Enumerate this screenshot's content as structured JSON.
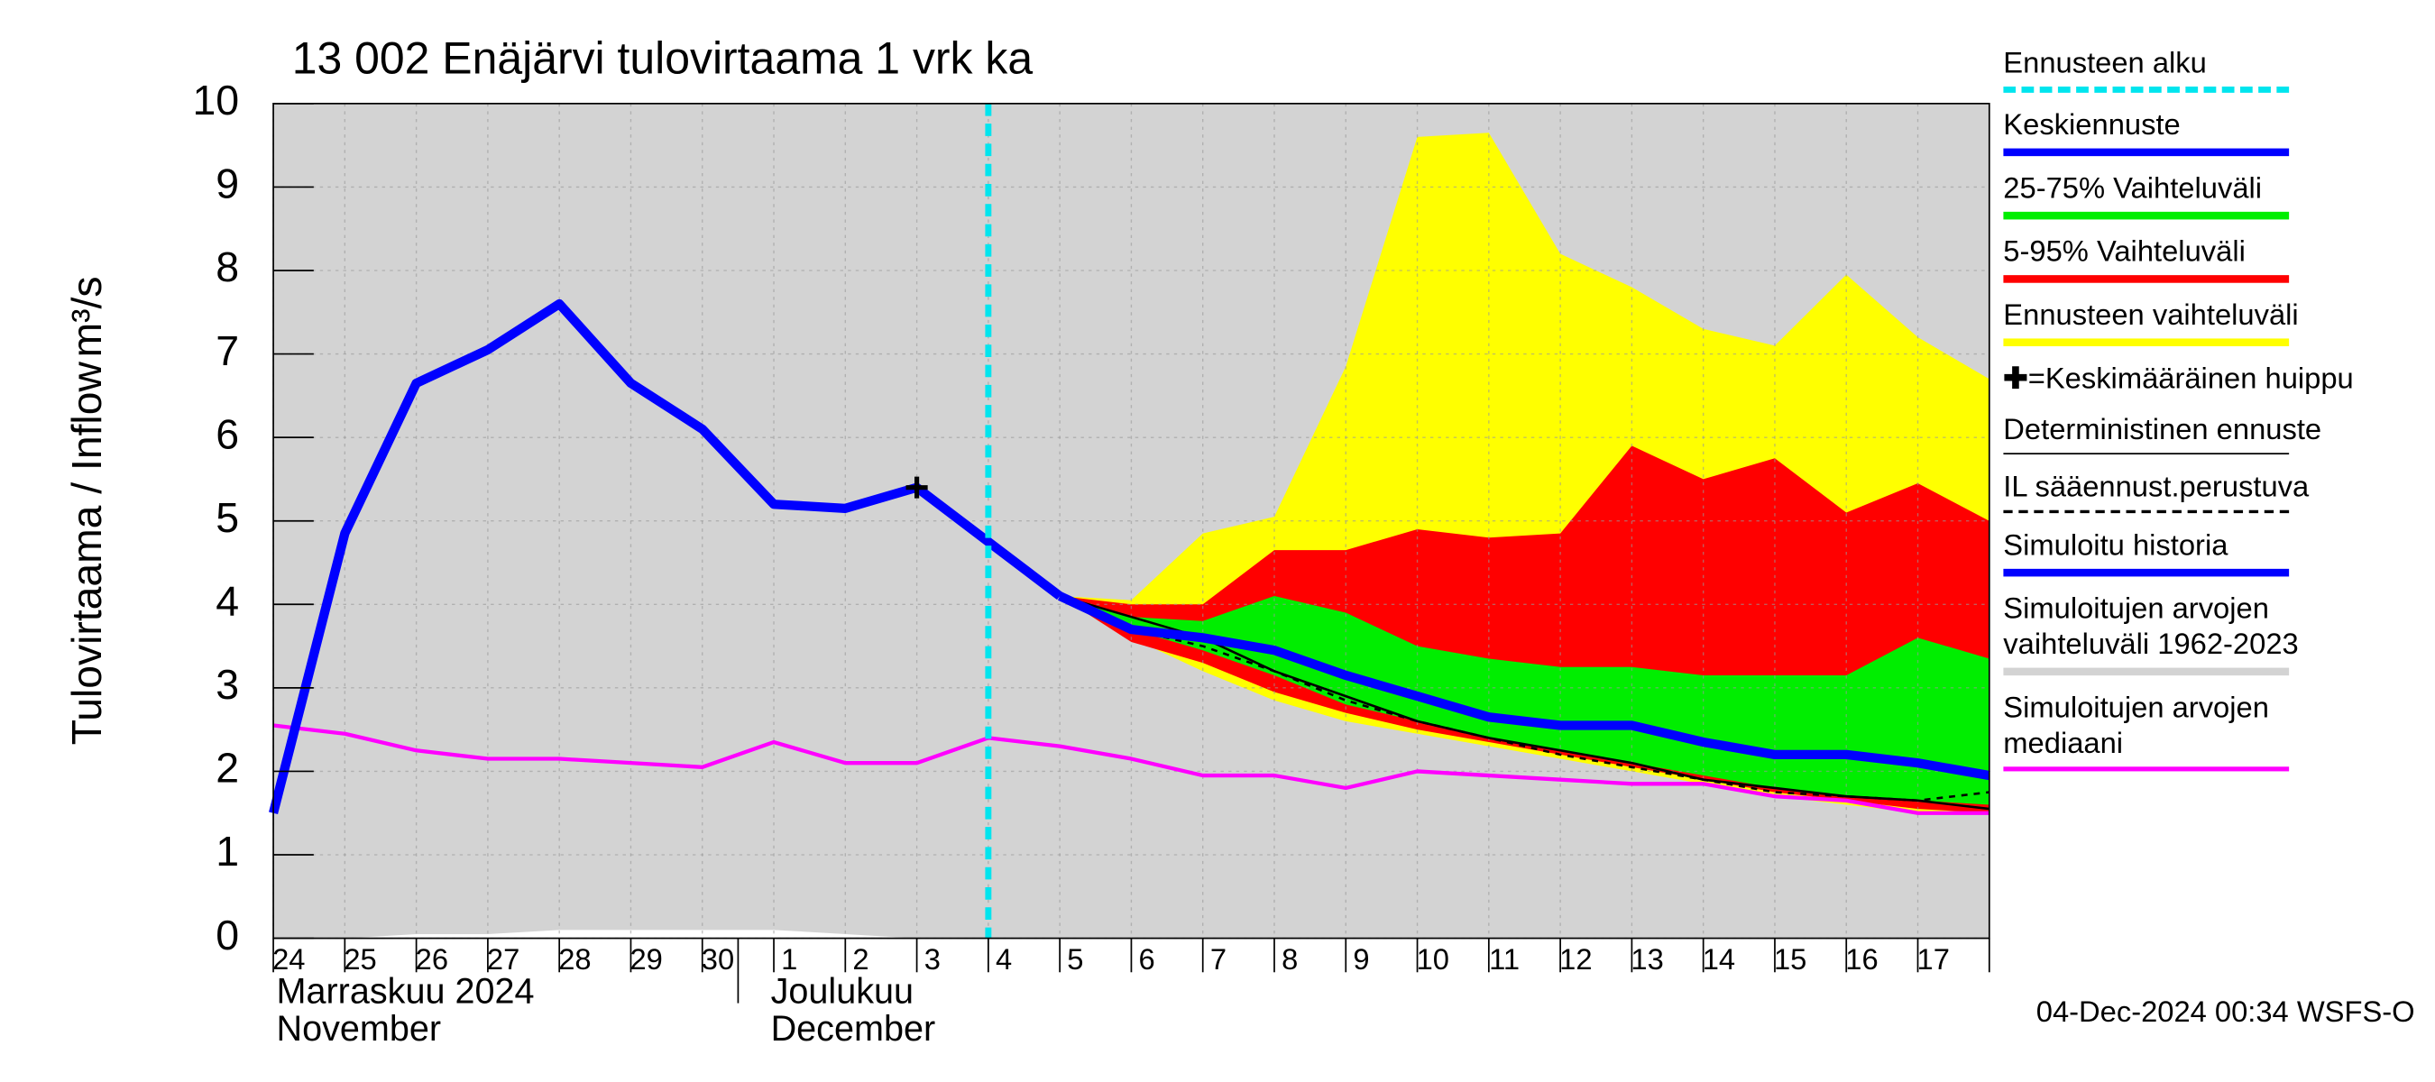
{
  "chart_data": {
    "type": "line",
    "title": "13 002 Enäjärvi tulovirtaama 1 vrk ka",
    "y_label": "Tulovirtaama / Inflow",
    "y_unit": "m³/s",
    "months": [
      [
        "Marraskuu 2024",
        "November"
      ],
      [
        "Joulukuu",
        "December"
      ]
    ],
    "footer": "04-Dec-2024 00:34 WSFS-O",
    "categories": [
      "24",
      "25",
      "26",
      "27",
      "28",
      "29",
      "30",
      "1",
      "2",
      "3",
      "4",
      "5",
      "6",
      "7",
      "8",
      "9",
      "10",
      "11",
      "12",
      "13",
      "14",
      "15",
      "16",
      "17",
      null
    ],
    "xlim": [
      0,
      24
    ],
    "ylim": [
      0,
      10
    ],
    "yticks": [
      0,
      1,
      2,
      3,
      4,
      5,
      6,
      7,
      8,
      9,
      10
    ],
    "grid": true,
    "series": [
      {
        "name": "Ennusteen alku",
        "color": "#00e5ee",
        "kind": "vline",
        "x": 10
      },
      {
        "name": "Keskiennuste",
        "color": "#0000ff",
        "kind": "line",
        "values": [
          null,
          null,
          null,
          null,
          null,
          null,
          null,
          null,
          null,
          null,
          null,
          4.1,
          3.7,
          3.6,
          3.45,
          3.15,
          2.9,
          2.65,
          2.55,
          2.55,
          2.35,
          2.2,
          2.2,
          2.1,
          1.95
        ]
      },
      {
        "name": "25-75% Vaihteluväli",
        "color": "#00ee00",
        "kind": "band",
        "low": [
          null,
          null,
          null,
          null,
          null,
          null,
          null,
          null,
          null,
          null,
          null,
          4.1,
          3.7,
          3.45,
          3.15,
          2.8,
          2.6,
          2.4,
          2.25,
          2.1,
          1.95,
          1.8,
          1.7,
          1.65,
          1.6
        ],
        "high": [
          null,
          null,
          null,
          null,
          null,
          null,
          null,
          null,
          null,
          null,
          null,
          4.1,
          3.85,
          3.8,
          4.1,
          3.9,
          3.5,
          3.35,
          3.25,
          3.25,
          3.15,
          3.15,
          3.15,
          3.6,
          3.35
        ]
      },
      {
        "name": "5-95% Vaihteluväli",
        "color": "#ff0000",
        "kind": "band",
        "low": [
          null,
          null,
          null,
          null,
          null,
          null,
          null,
          null,
          null,
          null,
          null,
          4.1,
          3.55,
          3.3,
          2.95,
          2.7,
          2.5,
          2.35,
          2.2,
          2.05,
          1.9,
          1.75,
          1.65,
          1.55,
          1.5
        ],
        "high": [
          null,
          null,
          null,
          null,
          null,
          null,
          null,
          null,
          null,
          null,
          null,
          4.1,
          4.0,
          4.0,
          4.65,
          4.65,
          4.9,
          4.8,
          4.85,
          5.9,
          5.5,
          5.75,
          5.1,
          5.45,
          5.0
        ]
      },
      {
        "name": "Ennusteen vaihteluväli",
        "color": "#ffff00",
        "kind": "band",
        "low": [
          null,
          null,
          null,
          null,
          null,
          null,
          null,
          null,
          null,
          null,
          null,
          4.1,
          3.6,
          3.2,
          2.85,
          2.6,
          2.45,
          2.3,
          2.15,
          2.0,
          1.85,
          1.7,
          1.6,
          1.5,
          1.5
        ],
        "high": [
          null,
          null,
          null,
          null,
          null,
          null,
          null,
          null,
          null,
          null,
          null,
          4.1,
          4.05,
          4.85,
          5.05,
          6.85,
          9.6,
          9.65,
          8.2,
          7.8,
          7.3,
          7.1,
          7.95,
          7.2,
          6.7
        ]
      },
      {
        "name": "=Keskimääräinen huippu",
        "color": "#000000",
        "kind": "marker",
        "x": 9,
        "value": 5.4
      },
      {
        "name": "Deterministinen ennuste",
        "color": "#000000",
        "kind": "thin",
        "values": [
          null,
          null,
          null,
          null,
          null,
          null,
          null,
          null,
          null,
          null,
          null,
          4.1,
          3.85,
          3.6,
          3.2,
          2.9,
          2.6,
          2.4,
          2.25,
          2.1,
          1.9,
          1.8,
          1.7,
          1.65,
          1.55
        ]
      },
      {
        "name": "IL sääennust.perustuva",
        "color": "#000000",
        "kind": "dashed",
        "values": [
          null,
          null,
          null,
          null,
          null,
          null,
          null,
          null,
          null,
          null,
          null,
          4.1,
          3.7,
          3.5,
          3.2,
          2.85,
          2.6,
          2.4,
          2.2,
          2.05,
          1.9,
          1.75,
          1.7,
          1.65,
          1.75
        ]
      },
      {
        "name": "Simuloitu historia",
        "color": "#0000ff",
        "kind": "line",
        "values": [
          1.5,
          4.85,
          6.65,
          7.05,
          7.6,
          6.65,
          6.1,
          5.2,
          5.15,
          5.4,
          4.75,
          4.1,
          null,
          null,
          null,
          null,
          null,
          null,
          null,
          null,
          null,
          null,
          null,
          null,
          null
        ]
      },
      {
        "name": "Simuloitujen arvojen vaihteluväli 1962-2023",
        "color": "#d3d3d3",
        "kind": "band",
        "low": [
          0,
          0,
          0.05,
          0.05,
          0.1,
          0.1,
          0.1,
          0.1,
          0.05,
          0,
          0,
          0,
          0,
          0,
          0,
          0,
          0,
          0,
          0,
          0,
          0,
          0,
          0,
          0,
          0
        ],
        "high": [
          10,
          10,
          10,
          10,
          10,
          10,
          10,
          10,
          10,
          10,
          10,
          10,
          10,
          10,
          10,
          10,
          10,
          10,
          10,
          10,
          10,
          10,
          10,
          10,
          10
        ]
      },
      {
        "name": "Simuloitujen arvojen mediaani",
        "color": "#ff00ff",
        "kind": "median",
        "values": [
          2.55,
          2.45,
          2.25,
          2.15,
          2.15,
          2.1,
          2.05,
          2.35,
          2.1,
          2.1,
          2.4,
          2.3,
          2.15,
          1.95,
          1.95,
          1.8,
          2.0,
          1.95,
          1.9,
          1.85,
          1.85,
          1.7,
          1.65,
          1.5,
          1.5
        ]
      }
    ]
  }
}
